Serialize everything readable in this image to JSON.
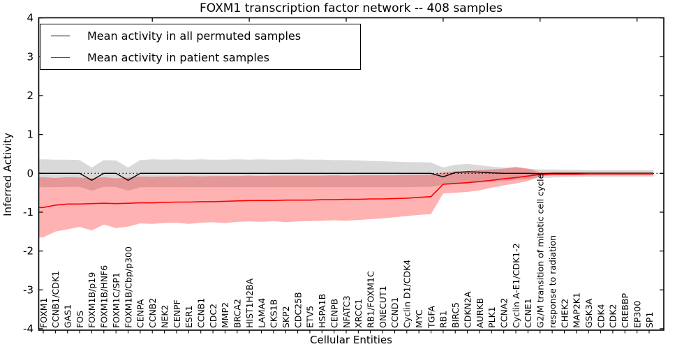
{
  "chart_data": {
    "type": "line",
    "title": "FOXM1 transcription factor network -- 408 samples",
    "xlabel": "Cellular Entities",
    "ylabel": "Inferred Activity",
    "ylim": [
      -4,
      4
    ],
    "yticks": [
      4,
      3,
      2,
      1,
      0,
      -1,
      -2,
      -3,
      -4
    ],
    "grid": false,
    "legend_position": "upper left",
    "zero_reference_line": "dotted black at y=0",
    "categories": [
      "FOXM1",
      "CCNB1/CDK1",
      "GAS1",
      "FOS",
      "FOXM1B/p19",
      "FOXM1B/HNF6",
      "FOXM1C/SP1",
      "FOXM1B/Cbp/p300",
      "CENPA",
      "CCNB2",
      "NEK2",
      "CENPF",
      "ESR1",
      "CCNB1",
      "CDC2",
      "MMP2",
      "BRCA2",
      "HIST1H2BA",
      "LAMA4",
      "CKS1B",
      "SKP2",
      "CDC25B",
      "ETV5",
      "HSPA1B",
      "CENPB",
      "NFATC3",
      "XRCC1",
      "RB1/FOXM1C",
      "ONECUT1",
      "CCND1",
      "Cyclin D1/CDK4",
      "MYC",
      "TGFA",
      "RB1",
      "BIRC5",
      "CDKN2A",
      "AURKB",
      "PLK1",
      "CCNA2",
      "Cyclin A-E1/CDK1-2",
      "CCNE1",
      "G2/M transition of mitotic cell cycle",
      "response to radiation",
      "CHEK2",
      "MAP2K1",
      "GSK3A",
      "CDK4",
      "CDK2",
      "CREBBP",
      "EP300",
      "SP1"
    ],
    "series": [
      {
        "name": "Mean activity in all permuted samples",
        "color": "#000000",
        "band_fill": "rgba(0,0,0,0.15)",
        "values": [
          0,
          0,
          0,
          0,
          -0.18,
          0,
          0,
          -0.18,
          0,
          0,
          0,
          0,
          0,
          0,
          0,
          0,
          0,
          0,
          0,
          0,
          0,
          0,
          0,
          0,
          0,
          0,
          0,
          0,
          0,
          0,
          0,
          0,
          0,
          -0.09,
          0.02,
          0.04,
          0.03,
          0.01,
          0,
          0,
          0,
          -0.01,
          0,
          0,
          0,
          0,
          0,
          0,
          0,
          0,
          0
        ],
        "band_hi": [
          0.36,
          0.35,
          0.35,
          0.34,
          0.15,
          0.34,
          0.33,
          0.15,
          0.34,
          0.36,
          0.35,
          0.36,
          0.35,
          0.36,
          0.35,
          0.35,
          0.36,
          0.35,
          0.36,
          0.35,
          0.35,
          0.36,
          0.35,
          0.35,
          0.34,
          0.34,
          0.33,
          0.32,
          0.31,
          0.3,
          0.29,
          0.285,
          0.28,
          0.15,
          0.22,
          0.24,
          0.21,
          0.17,
          0.15,
          0.14,
          0.12,
          0.1,
          0.1,
          0.09,
          0.09,
          0.08,
          0.08,
          0.08,
          0.08,
          0.08,
          0.08
        ],
        "band_lo": [
          -0.36,
          -0.36,
          -0.35,
          -0.35,
          -0.45,
          -0.35,
          -0.35,
          -0.45,
          -0.36,
          -0.36,
          -0.36,
          -0.36,
          -0.36,
          -0.36,
          -0.36,
          -0.36,
          -0.36,
          -0.36,
          -0.36,
          -0.36,
          -0.36,
          -0.36,
          -0.36,
          -0.36,
          -0.36,
          -0.36,
          -0.36,
          -0.36,
          -0.36,
          -0.36,
          -0.36,
          -0.35,
          -0.35,
          -0.3,
          -0.28,
          -0.26,
          -0.24,
          -0.22,
          -0.2,
          -0.17,
          -0.15,
          -0.12,
          -0.11,
          -0.1,
          -0.1,
          -0.09,
          -0.09,
          -0.09,
          -0.09,
          -0.09,
          -0.09
        ]
      },
      {
        "name": "Mean activity in patient samples",
        "color": "#ff0000",
        "band_fill": "rgba(255,0,0,0.30)",
        "values": [
          -0.88,
          -0.82,
          -0.79,
          -0.79,
          -0.78,
          -0.77,
          -0.78,
          -0.77,
          -0.76,
          -0.76,
          -0.75,
          -0.74,
          -0.74,
          -0.73,
          -0.73,
          -0.72,
          -0.71,
          -0.7,
          -0.7,
          -0.7,
          -0.69,
          -0.69,
          -0.69,
          -0.68,
          -0.68,
          -0.67,
          -0.67,
          -0.66,
          -0.66,
          -0.65,
          -0.64,
          -0.62,
          -0.6,
          -0.28,
          -0.26,
          -0.24,
          -0.21,
          -0.18,
          -0.14,
          -0.11,
          -0.07,
          -0.03,
          -0.02,
          -0.02,
          -0.02,
          -0.01,
          -0.01,
          -0.01,
          -0.01,
          -0.01,
          -0.01
        ],
        "band_hi": [
          -0.1,
          -0.12,
          -0.1,
          -0.11,
          -0.13,
          -0.1,
          -0.13,
          -0.11,
          -0.08,
          -0.09,
          -0.08,
          -0.08,
          -0.07,
          -0.08,
          -0.07,
          -0.07,
          -0.07,
          -0.06,
          -0.07,
          -0.06,
          -0.06,
          -0.06,
          -0.06,
          -0.06,
          -0.05,
          -0.06,
          -0.05,
          -0.05,
          -0.05,
          -0.05,
          -0.04,
          -0.04,
          -0.03,
          0.02,
          0.05,
          0.06,
          0.08,
          0.1,
          0.12,
          0.17,
          0.12,
          0.03,
          0.03,
          0.03,
          0.03,
          0.03,
          0.03,
          0.03,
          0.03,
          0.03,
          0.03
        ],
        "band_lo": [
          -1.65,
          -1.5,
          -1.44,
          -1.38,
          -1.47,
          -1.32,
          -1.41,
          -1.37,
          -1.29,
          -1.3,
          -1.28,
          -1.27,
          -1.3,
          -1.27,
          -1.26,
          -1.28,
          -1.25,
          -1.24,
          -1.25,
          -1.23,
          -1.26,
          -1.24,
          -1.23,
          -1.22,
          -1.21,
          -1.22,
          -1.2,
          -1.18,
          -1.16,
          -1.13,
          -1.1,
          -1.07,
          -1.05,
          -0.52,
          -0.5,
          -0.48,
          -0.44,
          -0.37,
          -0.31,
          -0.26,
          -0.2,
          -0.07,
          -0.05,
          -0.05,
          -0.05,
          -0.05,
          -0.05,
          -0.05,
          -0.05,
          -0.05,
          -0.05
        ]
      }
    ]
  }
}
